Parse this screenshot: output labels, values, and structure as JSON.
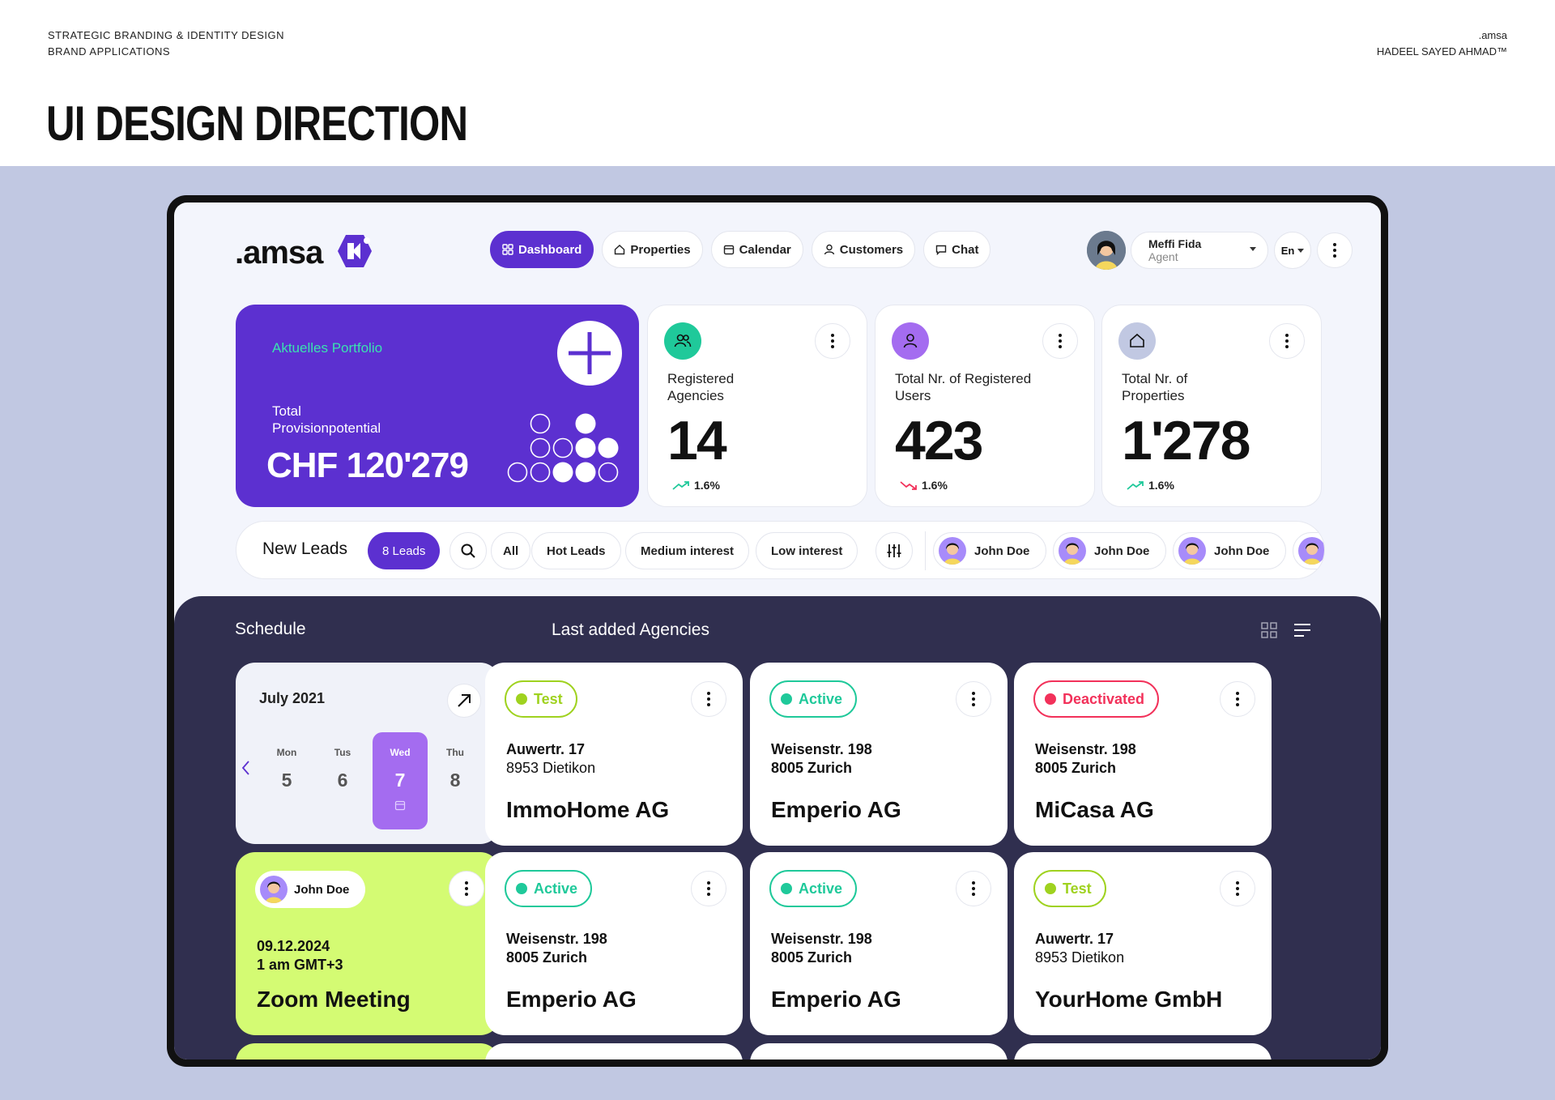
{
  "header": {
    "meta_left": [
      "Strategic Branding & Identity Design",
      "Brand Applications"
    ],
    "meta_right": [
      ".amsa",
      "HADEEL SAYED AHMAD™"
    ],
    "title": "UI DESIGN DIRECTION"
  },
  "app": {
    "logo": ".amsa",
    "nav": [
      {
        "label": "Dashboard",
        "icon": "grid-icon",
        "active": true
      },
      {
        "label": "Properties",
        "icon": "home-icon"
      },
      {
        "label": "Calendar",
        "icon": "calendar-icon"
      },
      {
        "label": "Customers",
        "icon": "user-icon"
      },
      {
        "label": "Chat",
        "icon": "chat-icon"
      }
    ],
    "user": {
      "name": "Meffi Fida",
      "role": "Agent"
    },
    "language": "En"
  },
  "portfolio": {
    "label": "Aktuelles Portfolio",
    "sub": "Total Provisionpotential",
    "value": "CHF 120'279"
  },
  "stats": [
    {
      "label": "Registered Agencies",
      "value": "14",
      "trend": "1.6%",
      "trend_dir": "up",
      "icon": "users-icon",
      "color": "#1fc99a"
    },
    {
      "label": "Total Nr. of Registered Users",
      "value": "423",
      "trend": "1.6%",
      "trend_dir": "down",
      "icon": "user-icon",
      "color": "#a46cf0"
    },
    {
      "label": "Total Nr. of Properties",
      "value": "1'278",
      "trend": "1.6%",
      "trend_dir": "up",
      "icon": "home-icon",
      "color": "#c1c8e2"
    }
  ],
  "leads": {
    "title": "New Leads",
    "count": "8 Leads",
    "filters": [
      "All",
      "Hot Leads",
      "Medium interest",
      "Low interest"
    ],
    "people": [
      "John Doe",
      "John Doe",
      "John Doe"
    ]
  },
  "schedule": {
    "title": "Schedule",
    "month": "July 2021",
    "days": [
      {
        "name": "Mon",
        "num": "5"
      },
      {
        "name": "Tus",
        "num": "6"
      },
      {
        "name": "Wed",
        "num": "7",
        "selected": true
      },
      {
        "name": "Thu",
        "num": "8"
      }
    ],
    "meeting": {
      "person": "John Doe",
      "date": "09.12.2024",
      "time": "1 am GMT+3",
      "title": "Zoom Meeting"
    }
  },
  "agencies": {
    "title": "Last added Agencies",
    "items": [
      {
        "status": "Test",
        "street": "Auwertr. 17",
        "city": "8953 Dietikon",
        "name": "ImmoHome AG"
      },
      {
        "status": "Active",
        "street": "Weisenstr. 198",
        "city": "8005 Zurich",
        "name": "Emperio AG"
      },
      {
        "status": "Deactivated",
        "street": "Weisenstr. 198",
        "city": "8005 Zurich",
        "name": "MiCasa AG"
      },
      {
        "status": "Active",
        "street": "Weisenstr. 198",
        "city": "8005 Zurich",
        "name": "Emperio AG"
      },
      {
        "status": "Active",
        "street": "Weisenstr. 198",
        "city": "8005 Zurich",
        "name": "Emperio AG"
      },
      {
        "status": "Test",
        "street": "Auwertr. 17",
        "city": "8953 Dietikon",
        "name": "YourHome GmbH"
      }
    ],
    "status_colors": {
      "Test": "#9fd21f",
      "Active": "#1fc99a",
      "Deactivated": "#f2315a"
    }
  }
}
